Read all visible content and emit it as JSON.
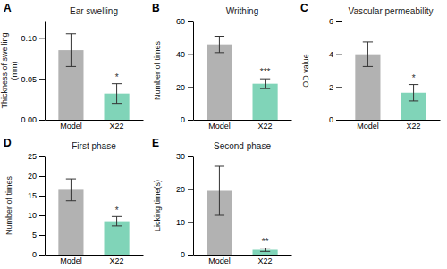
{
  "chart_data": [
    {
      "type": "bar",
      "panel_label": "A",
      "title": "Ear swelling",
      "ylabel": "Thickness of swelling\n(mm)",
      "categories": [
        "Model",
        "X22"
      ],
      "values": [
        0.085,
        0.032
      ],
      "errors": [
        0.02,
        0.012
      ],
      "colors": [
        "#b2b2b2",
        "#80d4b8"
      ],
      "ylim": [
        0,
        0.12
      ],
      "yticks": [
        {
          "value": 0,
          "label": "0.00"
        },
        {
          "value": 0.05,
          "label": "0.05"
        },
        {
          "value": 0.1,
          "label": "0.10"
        }
      ],
      "significance": [
        null,
        "*"
      ],
      "grid": false
    },
    {
      "type": "bar",
      "panel_label": "B",
      "title": "Writhing",
      "ylabel": "Number of times",
      "categories": [
        "Model",
        "X22"
      ],
      "values": [
        46,
        22
      ],
      "errors": [
        5,
        3
      ],
      "colors": [
        "#b2b2b2",
        "#80d4b8"
      ],
      "ylim": [
        0,
        60
      ],
      "yticks": [
        0,
        20,
        40,
        60
      ],
      "significance": [
        null,
        "***"
      ],
      "grid": false
    },
    {
      "type": "bar",
      "panel_label": "C",
      "title": "Vascular permeability",
      "ylabel": "OD value",
      "categories": [
        "Model",
        "X22"
      ],
      "values": [
        4.0,
        1.65
      ],
      "errors": [
        0.75,
        0.5
      ],
      "colors": [
        "#b2b2b2",
        "#80d4b8"
      ],
      "ylim": [
        0,
        6
      ],
      "yticks": [
        0,
        2,
        4,
        6
      ],
      "significance": [
        null,
        "*"
      ],
      "grid": false
    },
    {
      "type": "bar",
      "panel_label": "D",
      "title": "First phase",
      "ylabel": "Number of times",
      "categories": [
        "Model",
        "X22"
      ],
      "values": [
        16.5,
        8.5
      ],
      "errors": [
        2.8,
        1.2
      ],
      "colors": [
        "#b2b2b2",
        "#80d4b8"
      ],
      "ylim": [
        0,
        25
      ],
      "yticks": [
        0,
        5,
        10,
        15,
        20,
        25
      ],
      "significance": [
        null,
        "*"
      ],
      "grid": false
    },
    {
      "type": "bar",
      "panel_label": "E",
      "title": "Second phase",
      "ylabel": "Licking time(s)",
      "categories": [
        "Model",
        "X22"
      ],
      "values": [
        19.5,
        1.5
      ],
      "errors": [
        7.5,
        0.5
      ],
      "colors": [
        "#b2b2b2",
        "#80d4b8"
      ],
      "ylim": [
        0,
        30
      ],
      "yticks": [
        0,
        10,
        20,
        30
      ],
      "significance": [
        null,
        "**"
      ],
      "grid": false
    }
  ]
}
